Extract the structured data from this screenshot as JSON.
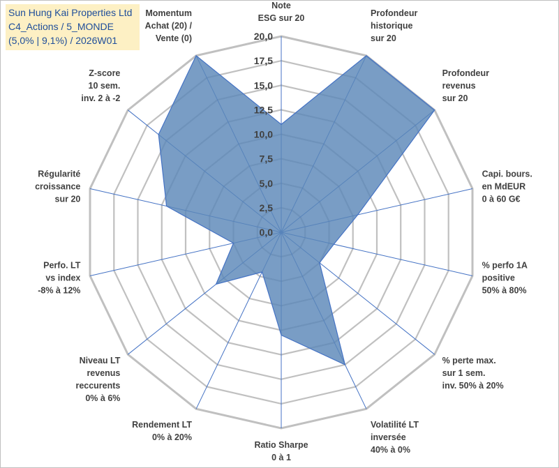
{
  "title_box": {
    "line1": "Sun Hung Kai Properties Ltd",
    "line2": "C4_Actions / 5_MONDE",
    "line3": "(5,0% | 9,1%) / 2026W01"
  },
  "colors": {
    "fill": "#5b87b8",
    "stroke": "#4472c4",
    "grid": "#c0c0c0",
    "spoke": "#4472c4",
    "title_bg": "#fdf0c4",
    "title_text": "#1f4e9a"
  },
  "chart_data": {
    "type": "radar",
    "rmax": 20,
    "ticks": [
      "0,0",
      "2,5",
      "5,0",
      "7,5",
      "10,0",
      "12,5",
      "15,0",
      "17,5",
      "20,0"
    ],
    "axes": [
      {
        "label": [
          "Note",
          "ESG sur 20"
        ],
        "value": 11.0
      },
      {
        "label": [
          "Profondeur",
          "historique",
          "sur 20"
        ],
        "value": 20.0
      },
      {
        "label": [
          "Profondeur",
          "revenus",
          "sur 20"
        ],
        "value": 20.0
      },
      {
        "label": [
          "Capi. bours.",
          "en MdEUR",
          "0 à 60 G€"
        ],
        "value": 8.0
      },
      {
        "label": [
          "% perfo 1A",
          "positive",
          "50% à 80%"
        ],
        "value": 5.5
      },
      {
        "label": [
          "% perte max.",
          "sur 1 sem.",
          "inv. 50% à 20%"
        ],
        "value": 5.0
      },
      {
        "label": [
          "Volatilité LT",
          "inversée",
          "40% à 0%"
        ],
        "value": 15.0
      },
      {
        "label": [
          "Ratio Sharpe",
          "0 à 1"
        ],
        "value": 10.5
      },
      {
        "label": [
          "Rendement LT",
          "0% à 20%"
        ],
        "value": 4.5
      },
      {
        "label": [
          "Niveau LT",
          "revenus",
          "reccurents",
          "0% à 6%"
        ],
        "value": 8.5
      },
      {
        "label": [
          "Perfo. LT",
          "vs index",
          "-8% à 12%"
        ],
        "value": 5.0
      },
      {
        "label": [
          "Régularité",
          "croissance",
          "sur 20"
        ],
        "value": 12.0
      },
      {
        "label": [
          "Z-score",
          "10 sem.",
          "inv. 2 à -2"
        ],
        "value": 16.0
      },
      {
        "label": [
          "Momentum",
          "Achat (20) /",
          "Vente (0)"
        ],
        "value": 20.0
      }
    ]
  }
}
